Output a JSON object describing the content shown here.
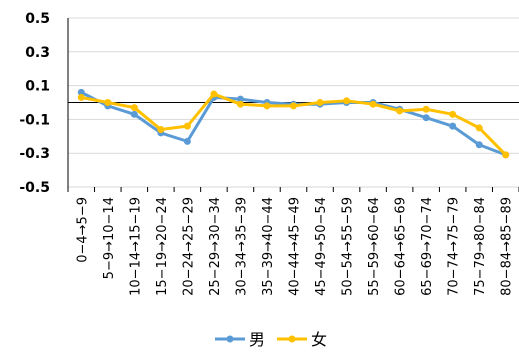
{
  "chart_data": {
    "type": "line",
    "categories": [
      "0−4→5−9",
      "5−9→10−14",
      "10−14→15−19",
      "15−19→20−24",
      "20−24→25−29",
      "25−29→30−34",
      "30−34→35−39",
      "35−39→40−44",
      "40−44→45−49",
      "45−49→50−54",
      "50−54→55−59",
      "55−59→60−64",
      "60−64→65−69",
      "65−69→70−74",
      "70−74→75−79",
      "75−79→80−84",
      "80−84→85−89"
    ],
    "series": [
      {
        "name": "男",
        "color": "#5B9BD5",
        "values": [
          0.06,
          -0.02,
          -0.07,
          -0.18,
          -0.23,
          0.03,
          0.02,
          0.0,
          -0.01,
          -0.01,
          0.0,
          0.0,
          -0.04,
          -0.09,
          -0.14,
          -0.25,
          -0.31
        ]
      },
      {
        "name": "女",
        "color": "#FFC000",
        "values": [
          0.03,
          0.0,
          -0.03,
          -0.16,
          -0.14,
          0.05,
          -0.01,
          -0.02,
          -0.02,
          0.0,
          0.01,
          -0.01,
          -0.05,
          -0.04,
          -0.07,
          -0.15,
          -0.31
        ]
      }
    ],
    "ylim": [
      -0.5,
      0.5
    ],
    "y_ticks": [
      "0.5",
      "0.3",
      "0.1",
      "-0.1",
      "-0.3",
      "-0.5"
    ],
    "y_tick_values": [
      0.5,
      0.3,
      0.1,
      -0.1,
      -0.3,
      -0.5
    ],
    "grid": true,
    "legend_position": "bottom",
    "title": "",
    "xlabel": "",
    "ylabel": ""
  }
}
